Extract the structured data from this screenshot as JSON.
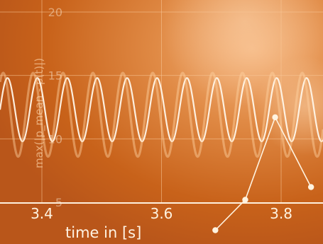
{
  "chart_data": {
    "type": "line",
    "xlabel": "time in [s]",
    "ylabel": "max(|p_mean - p(t)|)",
    "x_ticks": [
      "3.4",
      "3.6",
      "3.8"
    ],
    "y_ticks": [
      "5",
      "10",
      "15",
      "20"
    ],
    "xlim": [
      3.33,
      3.87
    ],
    "ylim": [
      4.5,
      20.5
    ],
    "grid": true,
    "series": [
      {
        "style": "oscillation",
        "color": "#fff6e8",
        "opacity": 0.95,
        "x_start": 3.33,
        "x_end": 3.87,
        "center": 12.3,
        "amplitude": 2.5,
        "period": 0.05,
        "phase": 0.0
      },
      {
        "style": "oscillation",
        "color": "#ffd3a1",
        "opacity": 0.45,
        "x_start": 3.33,
        "x_end": 3.87,
        "center": 11.9,
        "amplitude": 3.3,
        "period": 0.05,
        "phase": 0.9
      },
      {
        "style": "markers",
        "color": "#fff3e0",
        "points": [
          {
            "x": 3.69,
            "y": 2.8
          },
          {
            "x": 3.74,
            "y": 5.2
          },
          {
            "x": 3.79,
            "y": 11.7
          },
          {
            "x": 3.85,
            "y": 6.2
          }
        ]
      }
    ]
  }
}
